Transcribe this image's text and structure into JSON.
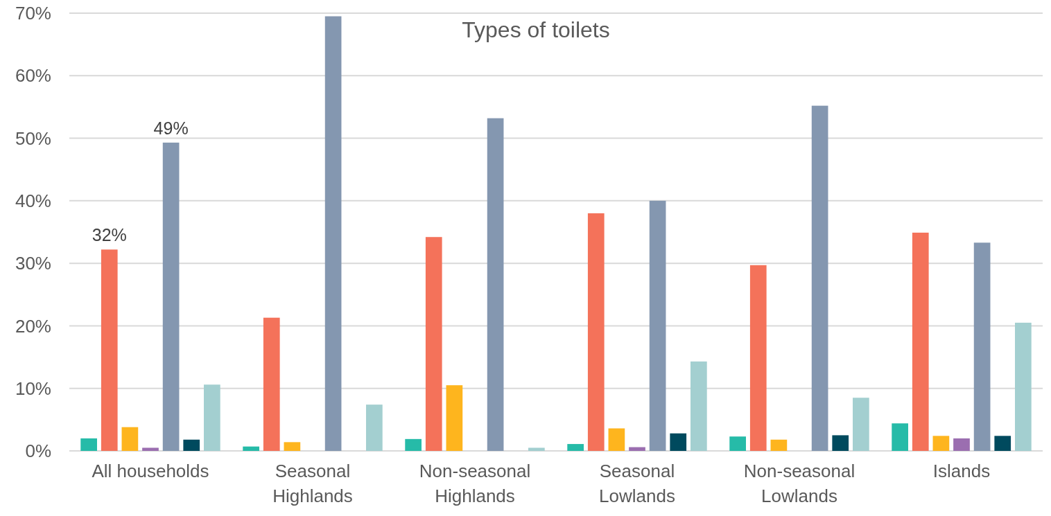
{
  "chart_data": {
    "type": "bar",
    "title": "Types of toilets",
    "categories": [
      "All households",
      "Seasonal Highlands",
      "Non-seasonal Highlands",
      "Seasonal Lowlands",
      "Non-seasonal Lowlands",
      "Islands"
    ],
    "series": [
      {
        "color": "#26bba8",
        "values": [
          2.0,
          0.7,
          1.9,
          1.1,
          2.3,
          4.4
        ]
      },
      {
        "color": "#f4725a",
        "values": [
          32.2,
          21.3,
          34.2,
          38.0,
          29.7,
          34.9
        ],
        "value_labels": [
          "32%",
          null,
          null,
          null,
          null,
          null
        ]
      },
      {
        "color": "#feb51e",
        "values": [
          3.8,
          1.4,
          10.5,
          3.6,
          1.8,
          2.4
        ]
      },
      {
        "color": "#9b6eb0",
        "values": [
          0.5,
          null,
          null,
          0.6,
          null,
          2.0
        ]
      },
      {
        "color": "#8497b0",
        "values": [
          49.3,
          69.5,
          53.2,
          40.0,
          55.2,
          33.3
        ],
        "value_labels": [
          "49%",
          null,
          null,
          null,
          null,
          null
        ]
      },
      {
        "color": "#004a5e",
        "values": [
          1.8,
          null,
          null,
          2.8,
          2.5,
          2.4
        ]
      },
      {
        "color": "#a3cfd0",
        "values": [
          10.6,
          7.4,
          0.5,
          14.3,
          8.5,
          20.5
        ]
      }
    ],
    "ylim": [
      0,
      70
    ],
    "yticks": [
      {
        "value": 0,
        "label": "0%"
      },
      {
        "value": 10,
        "label": "10%"
      },
      {
        "value": 20,
        "label": "20%"
      },
      {
        "value": 30,
        "label": "30%"
      },
      {
        "value": 40,
        "label": "40%"
      },
      {
        "value": 50,
        "label": "50%"
      },
      {
        "value": 60,
        "label": "60%"
      },
      {
        "value": 70,
        "label": "70%"
      }
    ],
    "grid": "y"
  }
}
